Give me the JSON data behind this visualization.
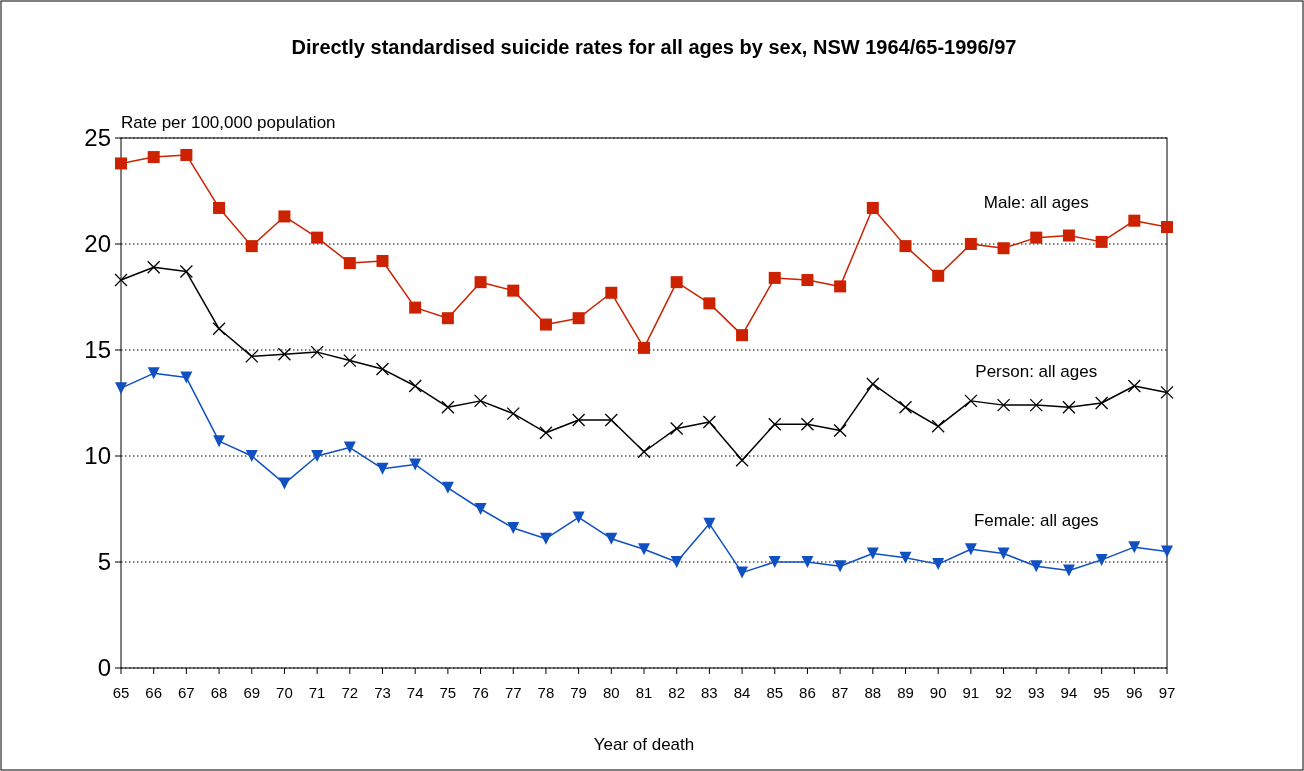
{
  "chart_data": {
    "type": "line",
    "title": "Directly standardised suicide rates for all ages by sex, NSW 1964/65-1996/97",
    "xlabel": "Year of death",
    "ylabel": "Rate per 100,000 population",
    "categories": [
      "65",
      "66",
      "67",
      "68",
      "69",
      "70",
      "71",
      "72",
      "73",
      "74",
      "75",
      "76",
      "77",
      "78",
      "79",
      "80",
      "81",
      "82",
      "83",
      "84",
      "85",
      "86",
      "87",
      "88",
      "89",
      "90",
      "91",
      "92",
      "93",
      "94",
      "95",
      "96",
      "97"
    ],
    "series": [
      {
        "name": "Male: all ages",
        "color": "#cc2200",
        "marker": "square",
        "values": [
          23.8,
          24.1,
          24.2,
          21.7,
          19.9,
          21.3,
          20.3,
          19.1,
          19.2,
          17.0,
          16.5,
          18.2,
          17.8,
          16.2,
          16.5,
          17.7,
          15.1,
          18.2,
          17.2,
          15.7,
          18.4,
          18.3,
          18.0,
          21.7,
          19.9,
          18.5,
          20.0,
          19.8,
          20.3,
          20.4,
          20.1,
          21.1,
          20.8
        ]
      },
      {
        "name": "Person: all ages",
        "color": "#000000",
        "marker": "cross",
        "values": [
          18.3,
          18.9,
          18.7,
          16.0,
          14.7,
          14.8,
          14.9,
          14.5,
          14.1,
          13.3,
          12.3,
          12.6,
          12.0,
          11.1,
          11.7,
          11.7,
          10.2,
          11.3,
          11.6,
          9.8,
          11.5,
          11.5,
          11.2,
          13.4,
          12.3,
          11.4,
          12.6,
          12.4,
          12.4,
          12.3,
          12.5,
          13.3,
          13.0
        ]
      },
      {
        "name": "Female: all ages",
        "color": "#1050c0",
        "marker": "triangle",
        "values": [
          13.2,
          13.9,
          13.7,
          10.7,
          10.0,
          8.7,
          10.0,
          10.4,
          9.4,
          9.6,
          8.5,
          7.5,
          6.6,
          6.1,
          7.1,
          6.1,
          5.6,
          5.0,
          6.8,
          4.5,
          5.0,
          5.0,
          4.8,
          5.4,
          5.2,
          4.9,
          5.6,
          5.4,
          4.8,
          4.6,
          5.1,
          5.7,
          5.5
        ]
      }
    ],
    "ylim": [
      0,
      25
    ],
    "yticks": [
      0,
      5,
      10,
      15,
      20,
      25
    ],
    "grid": "y",
    "line_style": "solid"
  }
}
